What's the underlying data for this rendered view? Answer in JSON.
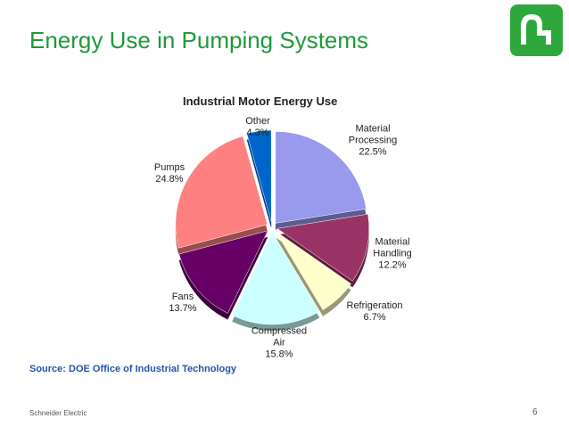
{
  "slide": {
    "title": "Energy Use in Pumping Systems",
    "source": "Source: DOE Office of Industrial Technology",
    "footer": "Schneider Electric",
    "page_number": "6"
  },
  "chart_data": {
    "type": "pie",
    "title": "Industrial Motor Energy Use",
    "categories": [
      "Material Processing",
      "Material Handling",
      "Refrigeration",
      "Compressed Air",
      "Fans",
      "Pumps",
      "Other"
    ],
    "values": [
      22.5,
      12.2,
      6.7,
      15.8,
      13.7,
      24.8,
      4.3
    ],
    "value_labels": [
      "22.5%",
      "12.2%",
      "6.7%",
      "15.8%",
      "13.7%",
      "24.8%",
      "4.3%"
    ],
    "colors": [
      "#9999ee",
      "#993366",
      "#ffffcc",
      "#ccffff",
      "#660066",
      "#ff8080",
      "#0066cc"
    ]
  }
}
